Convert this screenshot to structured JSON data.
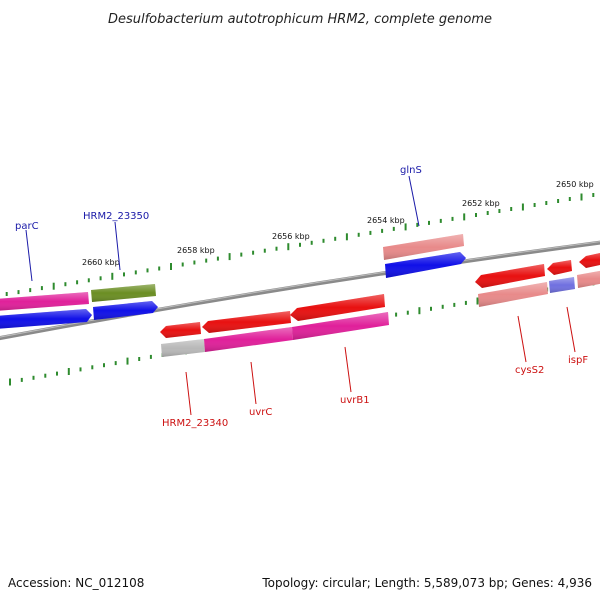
{
  "title": "Desulfobacterium autotrophicum HRM2, complete genome",
  "footer": {
    "accession": "Accession: NC_012108",
    "summary": "Topology: circular; Length: 5,589,073 bp; Genes: 4,936"
  },
  "kbp_labels": [
    "2660 kbp",
    "2658 kbp",
    "2656 kbp",
    "2654 kbp",
    "2652 kbp",
    "2650 kbp"
  ],
  "gene_labels": {
    "top": [
      "parC",
      "HRM2_23350",
      "glnS"
    ],
    "bottom": [
      "HRM2_23340",
      "uvrC",
      "uvrB1",
      "cysS2",
      "ispF"
    ]
  },
  "colors": {
    "backbone": "#8a8a8a",
    "tick": "#2e8b2e",
    "magenta": "#e0209a",
    "blue": "#1010e8",
    "olive": "#6b8e23",
    "red": "#e81010",
    "pink": "#e88a8a",
    "gray": "#b8b8b8",
    "lavender": "#7070e0",
    "label_blue": "#1a1aa8",
    "label_red": "#cc1111"
  }
}
